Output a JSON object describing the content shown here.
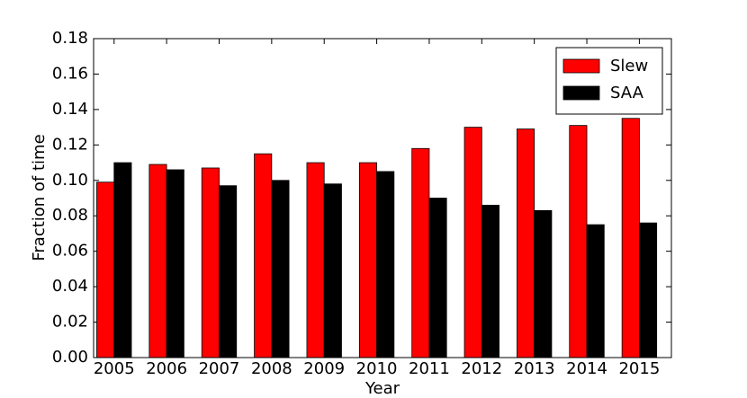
{
  "chart_data": {
    "type": "bar",
    "x_label": "Year",
    "y_label": "Fraction of time",
    "categories": [
      "2005",
      "2006",
      "2007",
      "2008",
      "2009",
      "2010",
      "2011",
      "2012",
      "2013",
      "2014",
      "2015"
    ],
    "series": [
      {
        "name": "Slew",
        "color": "#ff0000",
        "values": [
          0.099,
          0.109,
          0.107,
          0.115,
          0.11,
          0.11,
          0.118,
          0.13,
          0.129,
          0.131,
          0.135
        ]
      },
      {
        "name": "SAA",
        "color": "#000000",
        "values": [
          0.11,
          0.106,
          0.097,
          0.1,
          0.098,
          0.105,
          0.09,
          0.086,
          0.083,
          0.075,
          0.076
        ]
      }
    ],
    "ylim": [
      0,
      0.18
    ],
    "yticks": [
      {
        "value": 0,
        "label": "0.00"
      },
      0.02,
      0.04,
      0.06,
      0.08,
      {
        "value": 0.1,
        "label": "0.10"
      },
      0.12,
      0.14,
      0.16,
      0.18
    ],
    "legend": "upper right",
    "grid": false
  }
}
